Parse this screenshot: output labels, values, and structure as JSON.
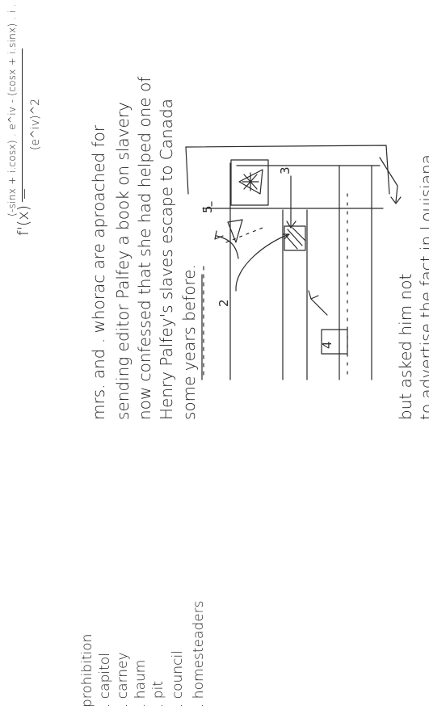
{
  "formula": {
    "lhs": "f'(x) =",
    "numerator": "(-sinx + i.cosx) . e^iv - (cosx + i.sinx) . i . e^iv",
    "denominator": "(e^iv)^2"
  },
  "notes": [
    "mrs. and . whorac are aproached for",
    "sending editor Palfey a book on slavery",
    "now confessed that she had helped one of",
    "Henry Palfey's slaves escape to Canada",
    "some years before.",
    "but asked him not",
    "to advertise the fact in Louisiana."
  ],
  "word_list": [
    "prohibition",
    ". capitol",
    ". carney",
    ". haum",
    ". pit",
    ". council",
    ". homesteaders"
  ],
  "diagram_labels": {
    "label_2": "2",
    "label_3": "3",
    "label_4": "4",
    "label_5": "5"
  },
  "colors": {
    "ink": "#1f1f1f",
    "paper": "#ffffff"
  }
}
